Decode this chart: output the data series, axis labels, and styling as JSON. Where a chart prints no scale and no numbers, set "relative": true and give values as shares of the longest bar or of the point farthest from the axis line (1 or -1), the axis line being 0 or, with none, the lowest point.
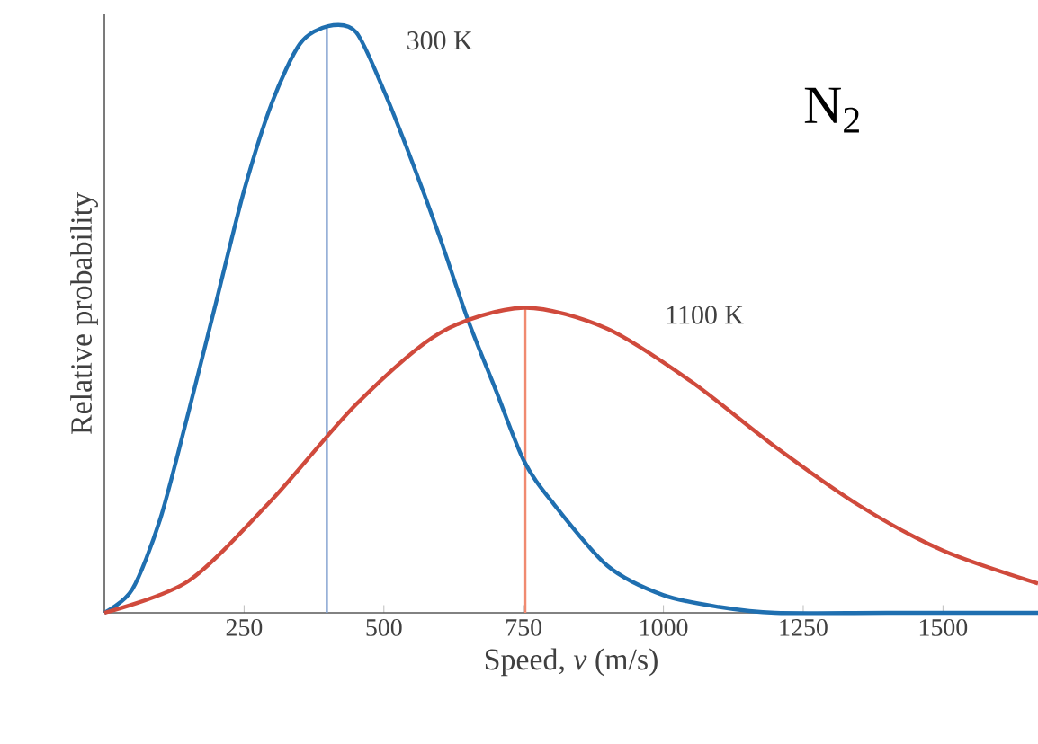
{
  "chart_data": {
    "type": "line",
    "relative": true,
    "xlabel": "Speed, *v* (m/s)",
    "ylabel": "Relative probability",
    "xlim": [
      0,
      1670
    ],
    "xticks": [
      250,
      500,
      750,
      1000,
      1250,
      1500
    ],
    "grid": false,
    "marker": "none",
    "line_style": "solid",
    "series": [
      {
        "name": "300 K",
        "color": "#1f6fb0",
        "x": [
          0,
          50,
          100,
          150,
          200,
          250,
          300,
          350,
          400,
          450,
          500,
          550,
          600,
          650,
          700,
          750,
          800,
          900,
          1000,
          1100,
          1200,
          1400,
          1670
        ],
        "values": [
          0,
          0.04,
          0.16,
          0.34,
          0.53,
          0.72,
          0.87,
          0.97,
          1.0,
          0.99,
          0.89,
          0.77,
          0.64,
          0.5,
          0.38,
          0.26,
          0.19,
          0.08,
          0.03,
          0.01,
          0,
          0,
          0
        ]
      },
      {
        "name": "1100 K",
        "color": "#d04a3c",
        "x": [
          0,
          150,
          300,
          450,
          600,
          750,
          900,
          1050,
          1200,
          1350,
          1500,
          1670
        ],
        "values": [
          0,
          0.054,
          0.193,
          0.355,
          0.477,
          0.52,
          0.484,
          0.394,
          0.283,
          0.183,
          0.106,
          0.05
        ]
      }
    ],
    "ref_lines": [
      {
        "axis": "x",
        "value": 398,
        "color": "#7f9fcf"
      },
      {
        "axis": "x",
        "value": 753,
        "color": "#f08a70"
      }
    ],
    "annotations": [
      "N$_{2}$"
    ]
  }
}
